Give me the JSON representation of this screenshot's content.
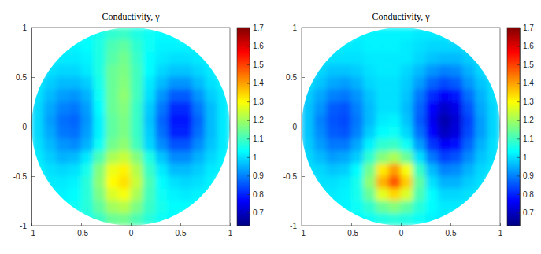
{
  "chart_data": [
    {
      "type": "heatmap",
      "title": "Conductivity, γ",
      "xlim": [
        -1,
        1
      ],
      "ylim": [
        -1,
        1
      ],
      "xticks": [
        -1,
        -0.5,
        0,
        0.5,
        1
      ],
      "yticks": [
        -1,
        -0.5,
        0,
        0.5,
        1
      ],
      "colorbar_lim": [
        0.63,
        1.7
      ],
      "colorbar_ticks": [
        0.7,
        0.8,
        0.9,
        1,
        1.1,
        1.2,
        1.3,
        1.4,
        1.5,
        1.6,
        1.7
      ],
      "x": [
        -0.9375,
        -0.8125,
        -0.6875,
        -0.5625,
        -0.4375,
        -0.3125,
        -0.1875,
        -0.0625,
        0.0625,
        0.1875,
        0.3125,
        0.4375,
        0.5625,
        0.6875,
        0.8125,
        0.9375
      ],
      "y": [
        0.9375,
        0.8125,
        0.6875,
        0.5625,
        0.4375,
        0.3125,
        0.1875,
        0.0625,
        -0.0625,
        -0.1875,
        -0.3125,
        -0.4375,
        -0.5625,
        -0.6875,
        -0.8125,
        -0.9375
      ],
      "z": [
        [
          null,
          null,
          null,
          null,
          1.03,
          1.05,
          1.08,
          1.09,
          1.06,
          1.04,
          1.03,
          1.03,
          null,
          null,
          null,
          null
        ],
        [
          null,
          null,
          1.02,
          1.02,
          1.03,
          1.06,
          1.11,
          1.13,
          1.08,
          1.04,
          1.02,
          1.02,
          1.02,
          1.02,
          null,
          null
        ],
        [
          null,
          1.02,
          1.01,
          1.01,
          1.02,
          1.06,
          1.12,
          1.15,
          1.09,
          1.03,
          1.01,
          1.0,
          1.0,
          1.01,
          1.02,
          null
        ],
        [
          null,
          1.0,
          0.99,
          0.99,
          1.01,
          1.06,
          1.14,
          1.16,
          1.1,
          1.03,
          0.99,
          0.97,
          0.97,
          0.99,
          1.01,
          null
        ],
        [
          1.01,
          0.98,
          0.96,
          0.96,
          0.98,
          1.05,
          1.14,
          1.17,
          1.1,
          1.01,
          0.96,
          0.92,
          0.92,
          0.96,
          1.0,
          1.02
        ],
        [
          1.0,
          0.96,
          0.93,
          0.92,
          0.95,
          1.04,
          1.14,
          1.18,
          1.1,
          1.0,
          0.92,
          0.86,
          0.86,
          0.92,
          0.98,
          1.01
        ],
        [
          0.99,
          0.94,
          0.9,
          0.89,
          0.93,
          1.03,
          1.14,
          1.17,
          1.09,
          0.98,
          0.89,
          0.81,
          0.81,
          0.89,
          0.96,
          1.01
        ],
        [
          0.99,
          0.93,
          0.88,
          0.87,
          0.92,
          1.02,
          1.13,
          1.16,
          1.09,
          0.97,
          0.87,
          0.79,
          0.79,
          0.87,
          0.96,
          1.01
        ],
        [
          0.99,
          0.94,
          0.89,
          0.88,
          0.93,
          1.02,
          1.13,
          1.16,
          1.09,
          0.98,
          0.88,
          0.8,
          0.8,
          0.88,
          0.96,
          1.01
        ],
        [
          1.0,
          0.96,
          0.92,
          0.91,
          0.95,
          1.04,
          1.15,
          1.18,
          1.1,
          0.99,
          0.91,
          0.85,
          0.85,
          0.91,
          0.97,
          1.01
        ],
        [
          1.01,
          0.98,
          0.95,
          0.96,
          1.01,
          1.11,
          1.21,
          1.24,
          1.17,
          1.06,
          0.97,
          0.91,
          0.91,
          0.95,
          0.99,
          1.02
        ],
        [
          1.02,
          1.0,
          0.99,
          1.0,
          1.05,
          1.17,
          1.28,
          1.31,
          1.22,
          1.09,
          1.01,
          0.96,
          0.96,
          0.98,
          1.01,
          1.02
        ],
        [
          null,
          1.01,
          1.01,
          1.02,
          1.07,
          1.18,
          1.3,
          1.33,
          1.24,
          1.11,
          1.03,
          1.0,
          0.99,
          1.0,
          1.02,
          null
        ],
        [
          null,
          1.02,
          1.02,
          1.03,
          1.07,
          1.16,
          1.26,
          1.29,
          1.21,
          1.1,
          1.04,
          1.02,
          1.01,
          1.02,
          1.02,
          null
        ],
        [
          null,
          null,
          1.03,
          1.04,
          1.07,
          1.13,
          1.2,
          1.22,
          1.16,
          1.09,
          1.05,
          1.03,
          1.03,
          1.03,
          null,
          null
        ],
        [
          null,
          null,
          null,
          null,
          1.05,
          1.09,
          1.14,
          1.15,
          1.11,
          1.07,
          1.04,
          1.03,
          null,
          null,
          null,
          null
        ]
      ]
    },
    {
      "type": "heatmap",
      "title": "Conductivity, γ",
      "xlim": [
        -1,
        1
      ],
      "ylim": [
        -1,
        1
      ],
      "xticks": [
        -1,
        -0.5,
        0,
        0.5,
        1
      ],
      "yticks": [
        -1,
        -0.5,
        0,
        0.5,
        1
      ],
      "colorbar_lim": [
        0.63,
        1.7
      ],
      "colorbar_ticks": [
        0.7,
        0.8,
        0.9,
        1,
        1.1,
        1.2,
        1.3,
        1.4,
        1.5,
        1.6,
        1.7
      ],
      "x": [
        -0.9375,
        -0.8125,
        -0.6875,
        -0.5625,
        -0.4375,
        -0.3125,
        -0.1875,
        -0.0625,
        0.0625,
        0.1875,
        0.3125,
        0.4375,
        0.5625,
        0.6875,
        0.8125,
        0.9375
      ],
      "y": [
        0.9375,
        0.8125,
        0.6875,
        0.5625,
        0.4375,
        0.3125,
        0.1875,
        0.0625,
        -0.0625,
        -0.1875,
        -0.3125,
        -0.4375,
        -0.5625,
        -0.6875,
        -0.8125,
        -0.9375
      ],
      "z": [
        [
          null,
          null,
          null,
          null,
          1.02,
          1.02,
          1.02,
          1.02,
          1.02,
          1.01,
          1.01,
          1.01,
          null,
          null,
          null,
          null
        ],
        [
          null,
          null,
          1.01,
          1.01,
          1.01,
          1.02,
          1.02,
          1.02,
          1.01,
          1.0,
          0.99,
          0.99,
          0.99,
          1.0,
          null,
          null
        ],
        [
          null,
          1.01,
          1.0,
          1.0,
          1.0,
          1.01,
          1.01,
          1.01,
          1.01,
          0.99,
          0.97,
          0.96,
          0.96,
          0.98,
          1.0,
          null
        ],
        [
          null,
          0.99,
          0.97,
          0.97,
          0.98,
          1.0,
          1.01,
          1.01,
          0.99,
          0.96,
          0.92,
          0.9,
          0.91,
          0.95,
          0.99,
          null
        ],
        [
          1.0,
          0.97,
          0.94,
          0.93,
          0.95,
          0.99,
          1.0,
          1.0,
          0.98,
          0.93,
          0.87,
          0.84,
          0.86,
          0.92,
          0.97,
          1.0
        ],
        [
          0.98,
          0.94,
          0.9,
          0.89,
          0.92,
          0.97,
          1.0,
          1.0,
          0.97,
          0.89,
          0.81,
          0.76,
          0.79,
          0.88,
          0.95,
          1.0
        ],
        [
          0.97,
          0.92,
          0.86,
          0.85,
          0.9,
          0.96,
          1.0,
          1.0,
          0.96,
          0.87,
          0.77,
          0.71,
          0.74,
          0.85,
          0.94,
          0.99
        ],
        [
          0.97,
          0.9,
          0.85,
          0.84,
          0.89,
          0.96,
          1.01,
          1.02,
          0.97,
          0.86,
          0.75,
          0.68,
          0.72,
          0.83,
          0.93,
          0.99
        ],
        [
          0.97,
          0.91,
          0.86,
          0.85,
          0.9,
          0.98,
          1.03,
          1.04,
          0.99,
          0.88,
          0.77,
          0.7,
          0.73,
          0.84,
          0.93,
          0.99
        ],
        [
          0.98,
          0.93,
          0.89,
          0.89,
          0.94,
          1.02,
          1.08,
          1.09,
          1.04,
          0.93,
          0.82,
          0.76,
          0.78,
          0.87,
          0.95,
          1.0
        ],
        [
          0.99,
          0.96,
          0.93,
          0.94,
          0.98,
          1.08,
          1.17,
          1.21,
          1.14,
          1.0,
          0.89,
          0.83,
          0.85,
          0.91,
          0.97,
          1.0
        ],
        [
          1.0,
          0.99,
          0.97,
          0.98,
          1.03,
          1.15,
          1.32,
          1.4,
          1.29,
          1.09,
          0.96,
          0.9,
          0.91,
          0.95,
          0.99,
          1.01
        ],
        [
          null,
          1.0,
          1.0,
          1.01,
          1.05,
          1.18,
          1.38,
          1.48,
          1.35,
          1.13,
          1.0,
          0.95,
          0.95,
          0.98,
          1.0,
          null
        ],
        [
          null,
          1.01,
          1.01,
          1.02,
          1.05,
          1.14,
          1.27,
          1.34,
          1.26,
          1.11,
          1.03,
          0.99,
          0.99,
          1.0,
          1.01,
          null
        ],
        [
          null,
          null,
          1.02,
          1.02,
          1.04,
          1.08,
          1.14,
          1.17,
          1.13,
          1.07,
          1.03,
          1.01,
          1.01,
          1.01,
          null,
          null
        ],
        [
          null,
          null,
          null,
          null,
          1.03,
          1.04,
          1.06,
          1.07,
          1.06,
          1.04,
          1.02,
          1.01,
          null,
          null,
          null,
          null
        ]
      ]
    }
  ]
}
